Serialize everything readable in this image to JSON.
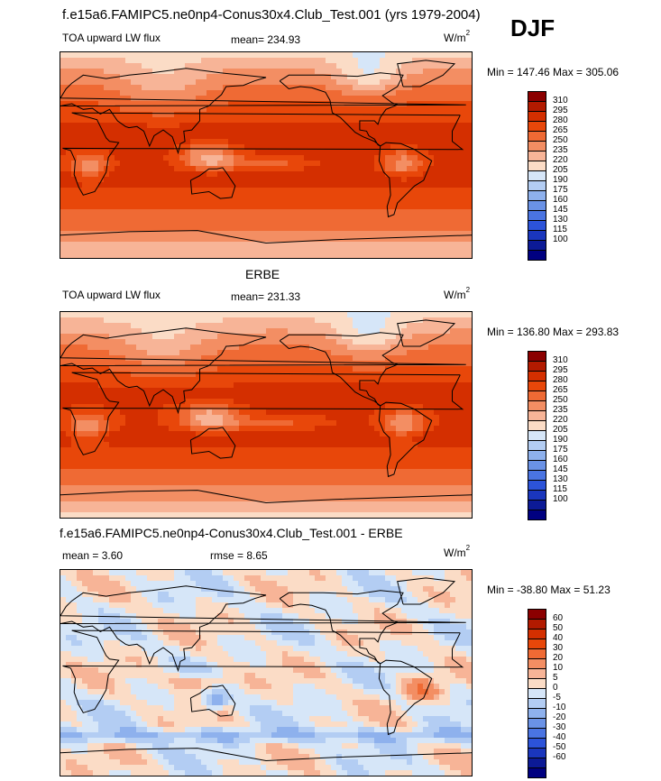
{
  "header": {
    "title": "f.e15a6.FAMIPC5.ne0np4-Conus30x4.Club_Test.001 (yrs 1979-2004)",
    "season": "DJF"
  },
  "chart_data": [
    {
      "type": "heatmap",
      "name": "model",
      "variable": "TOA upward LW flux",
      "mean_label": "mean= 234.93",
      "units": "W/m",
      "units_exp": "2",
      "minmax": "Min = 147.46 Max = 305.06",
      "min": 147.46,
      "max": 305.06,
      "levels": [
        "310",
        "295",
        "280",
        "265",
        "250",
        "235",
        "220",
        "205",
        "190",
        "175",
        "160",
        "145",
        "130",
        "115",
        "100"
      ],
      "colors": [
        "#8b0000",
        "#b21a00",
        "#d42f00",
        "#e8470a",
        "#ef6a34",
        "#f38e63",
        "#f7b497",
        "#fbdcc6",
        "#d6e6f8",
        "#b3cdf3",
        "#8eb1ed",
        "#6a92e6",
        "#4a74e2",
        "#2c53d9",
        "#1a36bd",
        "#0c1a96",
        "#000080"
      ]
    },
    {
      "type": "heatmap",
      "name": "obs",
      "title": "ERBE",
      "variable": "TOA upward LW flux",
      "mean_label": "mean= 231.33",
      "units": "W/m",
      "units_exp": "2",
      "minmax": "Min = 136.80 Max = 293.83",
      "min": 136.8,
      "max": 293.83,
      "levels": [
        "310",
        "295",
        "280",
        "265",
        "250",
        "235",
        "220",
        "205",
        "190",
        "175",
        "160",
        "145",
        "130",
        "115",
        "100"
      ],
      "colors": [
        "#8b0000",
        "#b21a00",
        "#d42f00",
        "#e8470a",
        "#ef6a34",
        "#f38e63",
        "#f7b497",
        "#fbdcc6",
        "#d6e6f8",
        "#b3cdf3",
        "#8eb1ed",
        "#6a92e6",
        "#4a74e2",
        "#2c53d9",
        "#1a36bd",
        "#0c1a96",
        "#000080"
      ]
    },
    {
      "type": "heatmap",
      "name": "diff",
      "title": "f.e15a6.FAMIPC5.ne0np4-Conus30x4.Club_Test.001 - ERBE",
      "mean_label": "mean =   3.60",
      "rmse_label": "rmse =   8.65",
      "units": "W/m",
      "units_exp": "2",
      "minmax": "Min = -38.80 Max =  51.23",
      "min": -38.8,
      "max": 51.23,
      "levels": [
        "60",
        "50",
        "40",
        "30",
        "20",
        "10",
        "5",
        "0",
        "-5",
        "-10",
        "-20",
        "-30",
        "-40",
        "-50",
        "-60"
      ],
      "colors": [
        "#8b0000",
        "#b21a00",
        "#d42f00",
        "#e8470a",
        "#ef6a34",
        "#f38e63",
        "#f7b497",
        "#fbdcc6",
        "#d6e6f8",
        "#b3cdf3",
        "#8eb1ed",
        "#6a92e6",
        "#4a74e2",
        "#2c53d9",
        "#1a36bd",
        "#0c1a96",
        "#000080"
      ]
    }
  ]
}
